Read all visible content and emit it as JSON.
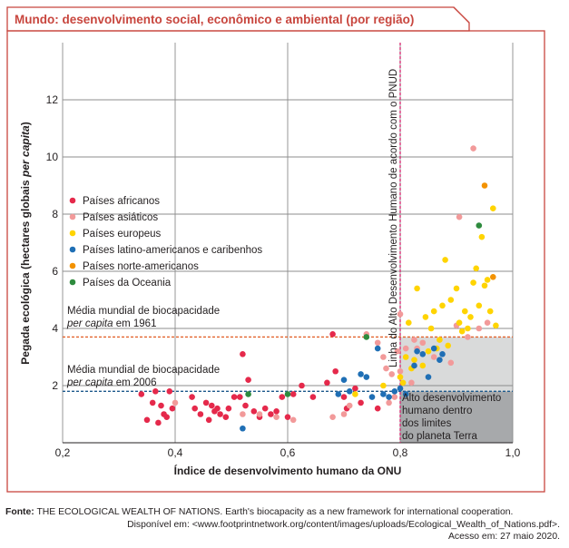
{
  "chart_data": {
    "type": "scatter",
    "title": "Mundo: desenvolvimento social, econômico e ambiental (por região)",
    "xlabel": "Índice de desenvolvimento humano da ONU",
    "ylabel_parts": [
      "Pegada ecológica (hectares globais ",
      "per capita",
      ")"
    ],
    "xlim": [
      0.2,
      1.0
    ],
    "ylim": [
      0,
      14
    ],
    "x_ticks": [
      "0,2",
      "0,4",
      "0,6",
      "0,8",
      "1,0"
    ],
    "x_tick_values": [
      0.2,
      0.4,
      0.6,
      0.8,
      1.0
    ],
    "y_ticks": [
      "2",
      "4",
      "6",
      "8",
      "10",
      "12"
    ],
    "y_tick_values": [
      2,
      4,
      6,
      8,
      10,
      12
    ],
    "grid": true,
    "legend_placement": "left",
    "colors": {
      "africa": "#e5294b",
      "asia": "#f29a9a",
      "europe": "#ffd400",
      "latin_america": "#1f6fb5",
      "north_america": "#f39200",
      "oceania": "#2e8b3e",
      "accent": "#c8463e",
      "threshold": "#d6246e",
      "biocap_1961": "#e2622c",
      "biocap_2006": "#1e5a8c",
      "zone_light": "#d9dada",
      "zone_dark": "#a7a9ab"
    },
    "annotations": {
      "idh_line": {
        "x": 0.8,
        "label": "Linha do Alto Desenvolvimento Humano de acordo com o PNUD"
      },
      "biocap_1961": {
        "y": 3.7,
        "line1": "Média mundial de biocapacidade",
        "line2_italic": "per capita",
        "line2_rest": " em 1961"
      },
      "biocap_2006": {
        "y": 1.8,
        "line1": "Média mundial de biocapacidade",
        "line2_italic": "per capita",
        "line2_rest": " em 2006"
      },
      "sustainable_zone": {
        "lines": [
          "Alto desenvolvimento",
          "humano dentro",
          "dos limites",
          "do planeta Terra"
        ]
      }
    },
    "series": [
      {
        "name": "Países africanos",
        "color": "#e5294b",
        "points": [
          [
            0.34,
            1.7
          ],
          [
            0.35,
            0.8
          ],
          [
            0.36,
            1.4
          ],
          [
            0.365,
            1.8
          ],
          [
            0.37,
            0.7
          ],
          [
            0.375,
            1.3
          ],
          [
            0.38,
            1.0
          ],
          [
            0.385,
            0.9
          ],
          [
            0.39,
            1.8
          ],
          [
            0.395,
            1.2
          ],
          [
            0.43,
            1.6
          ],
          [
            0.435,
            1.2
          ],
          [
            0.445,
            1.0
          ],
          [
            0.455,
            1.4
          ],
          [
            0.46,
            0.8
          ],
          [
            0.465,
            1.3
          ],
          [
            0.47,
            1.1
          ],
          [
            0.475,
            1.2
          ],
          [
            0.48,
            1.0
          ],
          [
            0.49,
            0.9
          ],
          [
            0.495,
            1.2
          ],
          [
            0.505,
            1.6
          ],
          [
            0.515,
            1.6
          ],
          [
            0.52,
            3.1
          ],
          [
            0.525,
            1.3
          ],
          [
            0.53,
            2.2
          ],
          [
            0.54,
            1.1
          ],
          [
            0.55,
            0.9
          ],
          [
            0.56,
            1.2
          ],
          [
            0.57,
            1.0
          ],
          [
            0.58,
            1.1
          ],
          [
            0.59,
            1.6
          ],
          [
            0.6,
            0.9
          ],
          [
            0.61,
            1.7
          ],
          [
            0.625,
            2.0
          ],
          [
            0.645,
            1.6
          ],
          [
            0.67,
            2.1
          ],
          [
            0.68,
            3.8
          ],
          [
            0.685,
            2.5
          ],
          [
            0.7,
            1.6
          ],
          [
            0.705,
            1.2
          ],
          [
            0.72,
            1.9
          ],
          [
            0.73,
            1.4
          ],
          [
            0.76,
            1.2
          ]
        ]
      },
      {
        "name": "Países asiáticos",
        "color": "#f29a9a",
        "points": [
          [
            0.4,
            1.4
          ],
          [
            0.52,
            1.0
          ],
          [
            0.55,
            1.0
          ],
          [
            0.58,
            0.9
          ],
          [
            0.61,
            0.8
          ],
          [
            0.68,
            0.9
          ],
          [
            0.7,
            1.0
          ],
          [
            0.71,
            1.3
          ],
          [
            0.74,
            3.8
          ],
          [
            0.76,
            3.5
          ],
          [
            0.77,
            3.0
          ],
          [
            0.775,
            2.6
          ],
          [
            0.78,
            1.4
          ],
          [
            0.785,
            2.4
          ],
          [
            0.79,
            1.6
          ],
          [
            0.795,
            3.2
          ],
          [
            0.8,
            2.5
          ],
          [
            0.8,
            4.5
          ],
          [
            0.81,
            3.3
          ],
          [
            0.82,
            2.1
          ],
          [
            0.825,
            3.6
          ],
          [
            0.83,
            3.3
          ],
          [
            0.84,
            3.5
          ],
          [
            0.86,
            3.0
          ],
          [
            0.89,
            2.8
          ],
          [
            0.9,
            4.1
          ],
          [
            0.905,
            7.9
          ],
          [
            0.92,
            3.7
          ],
          [
            0.93,
            10.3
          ],
          [
            0.94,
            4.0
          ],
          [
            0.955,
            4.2
          ]
        ]
      },
      {
        "name": "Países europeus",
        "color": "#ffd400",
        "points": [
          [
            0.72,
            1.7
          ],
          [
            0.77,
            2.0
          ],
          [
            0.8,
            2.3
          ],
          [
            0.805,
            2.1
          ],
          [
            0.81,
            3.0
          ],
          [
            0.815,
            4.2
          ],
          [
            0.82,
            2.6
          ],
          [
            0.825,
            2.9
          ],
          [
            0.83,
            5.4
          ],
          [
            0.84,
            2.7
          ],
          [
            0.845,
            4.4
          ],
          [
            0.85,
            3.2
          ],
          [
            0.855,
            4.0
          ],
          [
            0.86,
            4.6
          ],
          [
            0.865,
            3.3
          ],
          [
            0.87,
            3.6
          ],
          [
            0.875,
            4.8
          ],
          [
            0.88,
            6.4
          ],
          [
            0.885,
            3.4
          ],
          [
            0.89,
            5.0
          ],
          [
            0.9,
            5.4
          ],
          [
            0.905,
            4.2
          ],
          [
            0.91,
            3.9
          ],
          [
            0.915,
            4.6
          ],
          [
            0.92,
            4.0
          ],
          [
            0.925,
            4.4
          ],
          [
            0.93,
            5.6
          ],
          [
            0.935,
            6.1
          ],
          [
            0.94,
            4.8
          ],
          [
            0.945,
            7.2
          ],
          [
            0.95,
            5.5
          ],
          [
            0.955,
            5.7
          ],
          [
            0.96,
            4.6
          ],
          [
            0.965,
            8.2
          ],
          [
            0.97,
            4.1
          ]
        ]
      },
      {
        "name": "Países latino-americanos e caribenhos",
        "color": "#1f6fb5",
        "points": [
          [
            0.52,
            0.5
          ],
          [
            0.69,
            1.7
          ],
          [
            0.7,
            2.2
          ],
          [
            0.71,
            1.8
          ],
          [
            0.73,
            2.4
          ],
          [
            0.74,
            2.3
          ],
          [
            0.75,
            1.6
          ],
          [
            0.76,
            3.3
          ],
          [
            0.77,
            1.7
          ],
          [
            0.78,
            1.6
          ],
          [
            0.79,
            1.8
          ],
          [
            0.8,
            1.9
          ],
          [
            0.81,
            1.7
          ],
          [
            0.825,
            2.7
          ],
          [
            0.83,
            3.2
          ],
          [
            0.84,
            3.1
          ],
          [
            0.85,
            2.3
          ],
          [
            0.86,
            3.3
          ],
          [
            0.87,
            2.9
          ],
          [
            0.875,
            3.1
          ]
        ]
      },
      {
        "name": "Países norte-americanos",
        "color": "#f39200",
        "points": [
          [
            0.95,
            9.0
          ],
          [
            0.965,
            5.8
          ]
        ]
      },
      {
        "name": "Países da Oceania",
        "color": "#2e8b3e",
        "points": [
          [
            0.53,
            1.7
          ],
          [
            0.6,
            1.7
          ],
          [
            0.74,
            3.7
          ],
          [
            0.94,
            7.6
          ]
        ]
      }
    ]
  },
  "source": {
    "label": "Fonte:",
    "line1": " THE ECOLOGICAL WEALTH OF NATIONS. Earth's biocapacity as a new framework for international cooperation.",
    "line2": "Disponível em: <www.footprintnetwork.org/content/images/uploads/Ecological_Wealth_of_Nations.pdf>.",
    "line3": "Acesso em: 27 maio 2020."
  }
}
